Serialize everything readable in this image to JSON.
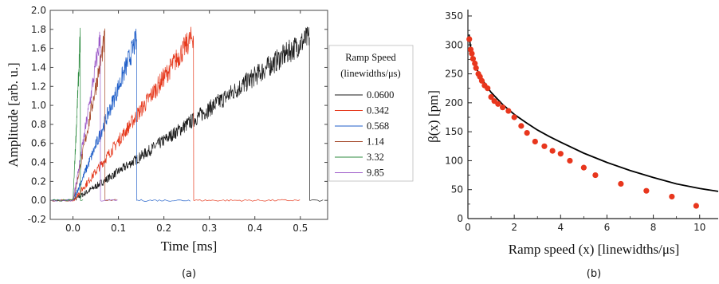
{
  "chart_data": [
    {
      "type": "line",
      "caption": "(a)",
      "xlabel": "Time [ms]",
      "ylabel": "Amplitude [arb. u.]",
      "xlim": [
        -0.05,
        0.56
      ],
      "ylim": [
        -0.2,
        2.0
      ],
      "xticks": [
        0.0,
        0.1,
        0.2,
        0.3,
        0.4,
        0.5
      ],
      "xtick_labels": [
        "0.0",
        "0.1",
        "0.2",
        "0.3",
        "0.4",
        "0.5"
      ],
      "yticks": [
        -0.2,
        0.0,
        0.2,
        0.4,
        0.6,
        0.8,
        1.0,
        1.2,
        1.4,
        1.6,
        1.8,
        2.0
      ],
      "ytick_labels": [
        "-0.2",
        "0.0",
        "0.2",
        "0.4",
        "0.6",
        "0.8",
        "1.0",
        "1.2",
        "1.4",
        "1.6",
        "1.8",
        "2.0"
      ],
      "legend": {
        "title_line1": "Ramp Speed",
        "title_line2": "(linewidths/μs)",
        "placement": "right, outside plot",
        "entries": [
          "0.0600",
          "0.342",
          "0.568",
          "1.14",
          "3.32",
          "9.85"
        ]
      },
      "series": [
        {
          "name": "0.0600",
          "color": "#1a1a1a",
          "ramp_start_ms": 0.0,
          "ramp_end_ms": 0.52,
          "peak": 1.72,
          "x_end_ms": 0.55
        },
        {
          "name": "0.342",
          "color": "#e63a1e",
          "ramp_start_ms": 0.0,
          "ramp_end_ms": 0.265,
          "peak": 1.74,
          "x_end_ms": 0.5
        },
        {
          "name": "0.568",
          "color": "#1f5ec8",
          "ramp_start_ms": 0.0,
          "ramp_end_ms": 0.14,
          "peak": 1.7,
          "x_end_ms": 0.26
        },
        {
          "name": "1.14",
          "color": "#a5492a",
          "ramp_start_ms": 0.0,
          "ramp_end_ms": 0.07,
          "peak": 1.7,
          "x_end_ms": 0.1
        },
        {
          "name": "3.32",
          "color": "#2b8a3e",
          "ramp_start_ms": 0.0,
          "ramp_end_ms": 0.016,
          "peak": 1.72,
          "x_end_ms": 0.025
        },
        {
          "name": "9.85",
          "color": "#9b59c8",
          "ramp_start_ms": 0.0,
          "ramp_end_ms": 0.06,
          "peak": 1.72,
          "x_end_ms": 0.1
        }
      ]
    },
    {
      "type": "scatter",
      "caption": "(b)",
      "xlabel": "Ramp speed (x) [linewidths/μs]",
      "ylabel": "β(x) [pm]",
      "xlim": [
        0,
        10.8
      ],
      "ylim": [
        0,
        350
      ],
      "xticks": [
        0,
        2,
        4,
        6,
        8,
        10
      ],
      "xtick_labels": [
        "0",
        "2",
        "4",
        "6",
        "8",
        "10"
      ],
      "yticks": [
        0,
        50,
        100,
        150,
        200,
        250,
        300,
        350
      ],
      "ytick_labels": [
        "0",
        "50",
        "100",
        "150",
        "200",
        "250",
        "300",
        "350"
      ],
      "points_color": "#e8361d",
      "fit_color": "#000000",
      "points": [
        [
          0.06,
          310
        ],
        [
          0.12,
          292
        ],
        [
          0.17,
          285
        ],
        [
          0.22,
          276
        ],
        [
          0.3,
          268
        ],
        [
          0.35,
          260
        ],
        [
          0.45,
          250
        ],
        [
          0.52,
          245
        ],
        [
          0.6,
          238
        ],
        [
          0.72,
          230
        ],
        [
          0.85,
          225
        ],
        [
          1.0,
          210
        ],
        [
          1.14,
          203
        ],
        [
          1.3,
          198
        ],
        [
          1.5,
          192
        ],
        [
          1.75,
          186
        ],
        [
          2.0,
          175
        ],
        [
          2.3,
          160
        ],
        [
          2.55,
          148
        ],
        [
          2.9,
          133
        ],
        [
          3.3,
          125
        ],
        [
          3.65,
          117
        ],
        [
          4.0,
          112
        ],
        [
          4.4,
          100
        ],
        [
          5.0,
          88
        ],
        [
          5.5,
          75
        ],
        [
          6.6,
          60
        ],
        [
          7.7,
          48
        ],
        [
          8.8,
          38
        ],
        [
          9.85,
          22
        ]
      ],
      "fit_curve": [
        [
          0.05,
          318
        ],
        [
          0.1,
          300
        ],
        [
          0.2,
          280
        ],
        [
          0.3,
          266
        ],
        [
          0.5,
          248
        ],
        [
          0.75,
          232
        ],
        [
          1.0,
          218
        ],
        [
          1.5,
          197
        ],
        [
          2.0,
          180
        ],
        [
          2.5,
          166
        ],
        [
          3.0,
          153
        ],
        [
          3.5,
          142
        ],
        [
          4.0,
          132
        ],
        [
          5.0,
          113
        ],
        [
          6.0,
          97
        ],
        [
          7.0,
          83
        ],
        [
          8.0,
          71
        ],
        [
          9.0,
          60
        ],
        [
          10.0,
          52
        ],
        [
          10.8,
          47
        ]
      ]
    }
  ]
}
